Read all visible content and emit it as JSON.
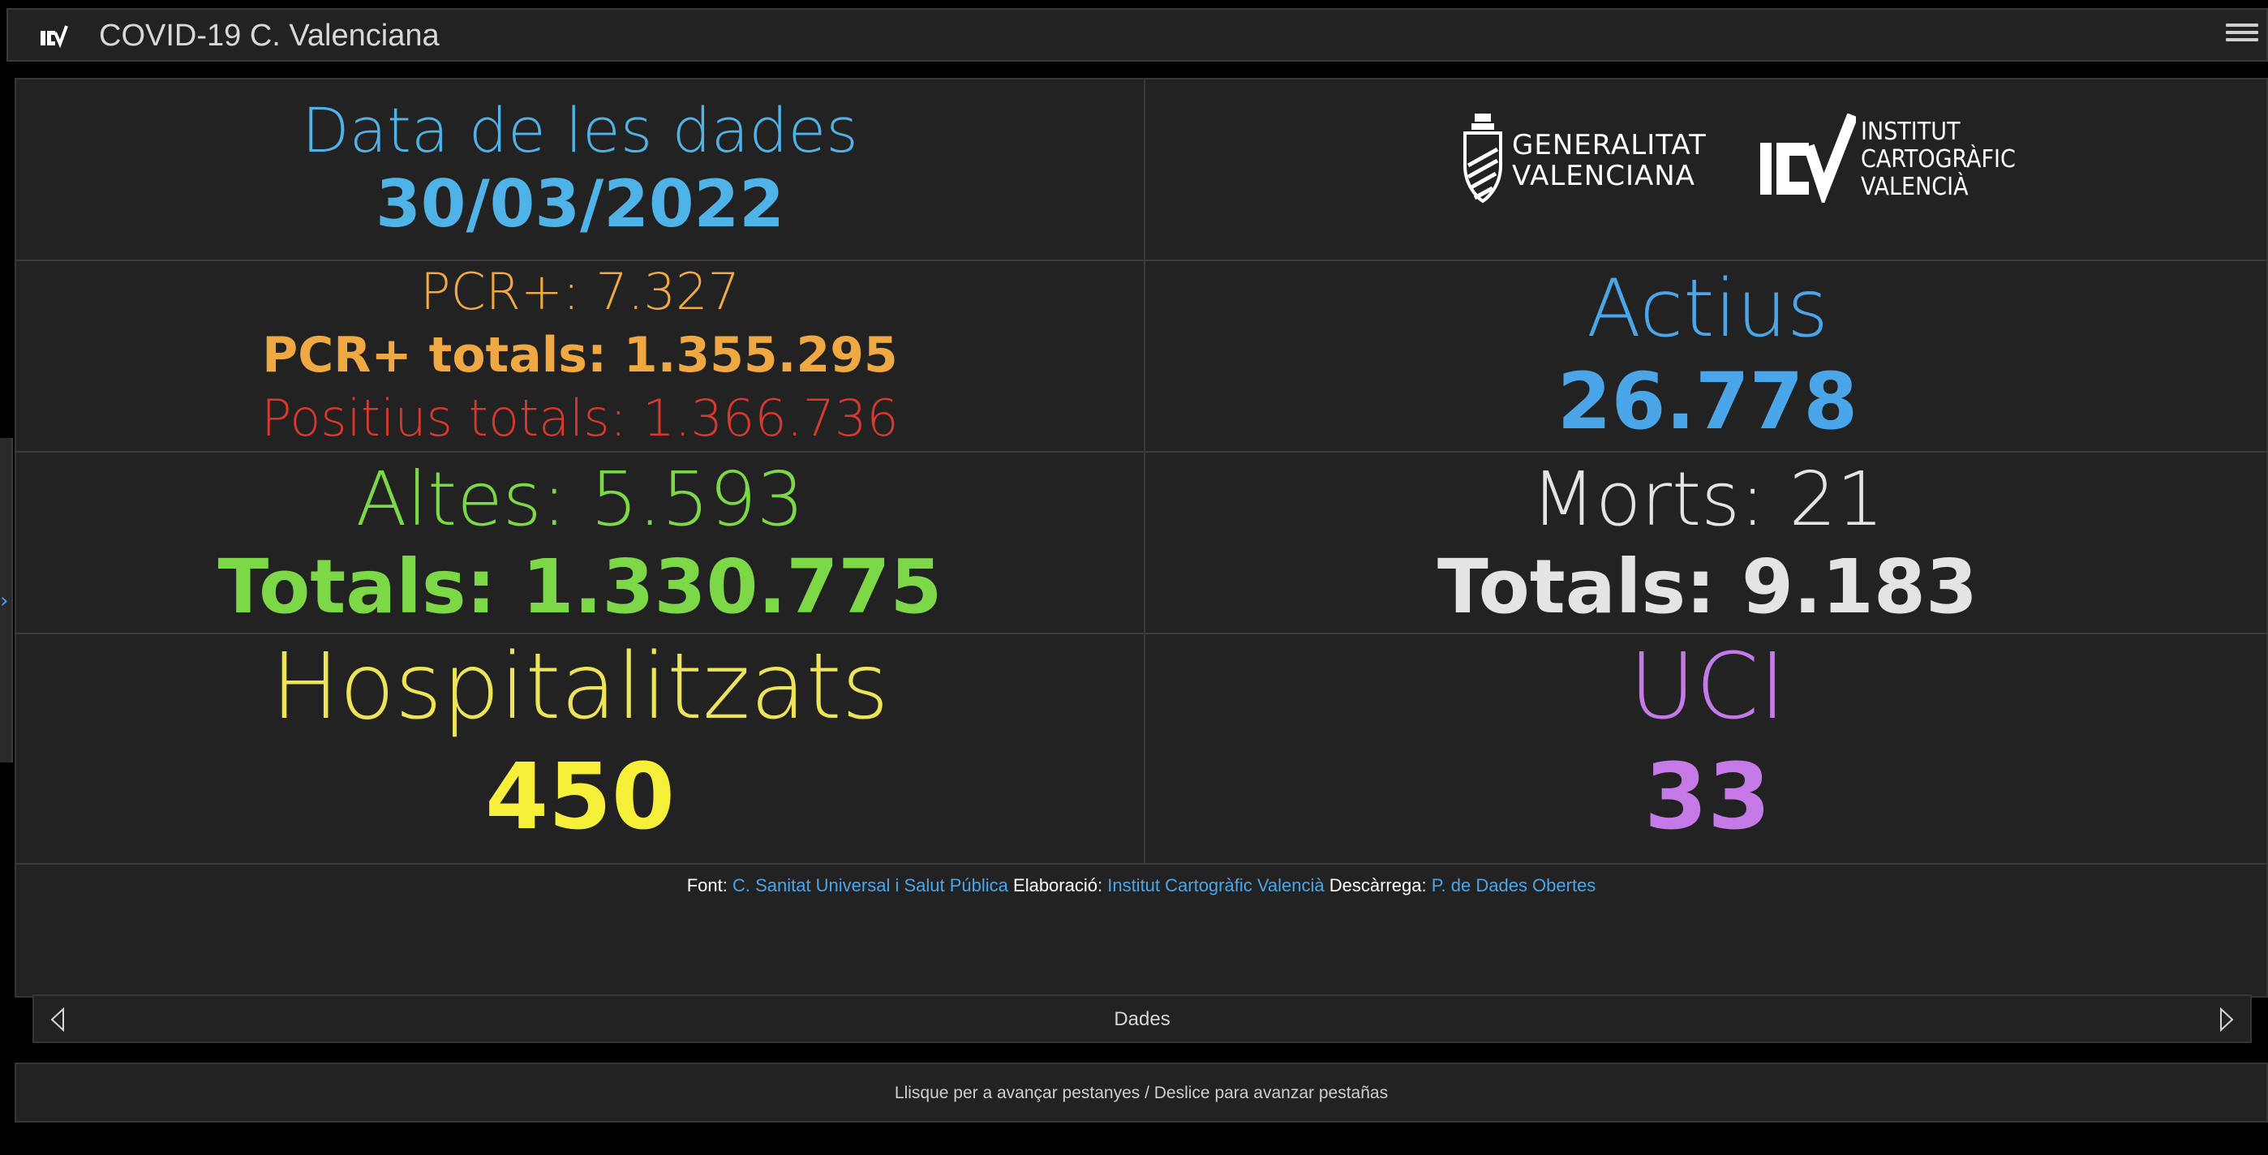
{
  "header": {
    "title": "COVID-19 C. Valenciana",
    "logo_icon": "icv-logo-icon",
    "menu_icon": "hamburger-menu-icon"
  },
  "date_cell": {
    "label": "Data de les dades",
    "value": "30/03/2022"
  },
  "logos": {
    "gva_line1": "GENERALITAT",
    "gva_line2": "VALENCIANA",
    "icv_line1": "INSTITUT",
    "icv_line2": "CARTOGRÀFIC",
    "icv_line3": "VALENCIÀ"
  },
  "pcr": {
    "daily": "PCR+: 7.327",
    "total": "PCR+ totals: 1.355.295",
    "positives_total": "Positius totals: 1.366.736"
  },
  "actius": {
    "label": "Actius",
    "value": "26.778"
  },
  "altes": {
    "daily": "Altes: 5.593",
    "total": "Totals: 1.330.775"
  },
  "morts": {
    "daily": "Morts: 21",
    "total": "Totals: 9.183"
  },
  "hosp": {
    "label": "Hospitalitzats",
    "value": "450"
  },
  "uci": {
    "label": "UCI",
    "value": "33"
  },
  "footer": {
    "font_label": "Font:",
    "font_link": "C. Sanitat Universal i Salut Pública",
    "elab_label": "Elaboració:",
    "elab_link": "Institut Cartogràfic Valencià",
    "desc_label": "Descàrrega:",
    "desc_link": "P. de Dades Obertes"
  },
  "tabs": {
    "current": "Dades"
  },
  "hint": "Llisque per a avançar pestanyes / Deslice para avanzar pestañas",
  "colors": {
    "date": "#4fb3e8",
    "pcr": "#f0a843",
    "positives": "#d9382e",
    "actius": "#4aa6e8",
    "altes": "#7cd846",
    "morts": "#e4e4e4",
    "hosp": "#ede45a",
    "uci": "#c57ae8"
  }
}
